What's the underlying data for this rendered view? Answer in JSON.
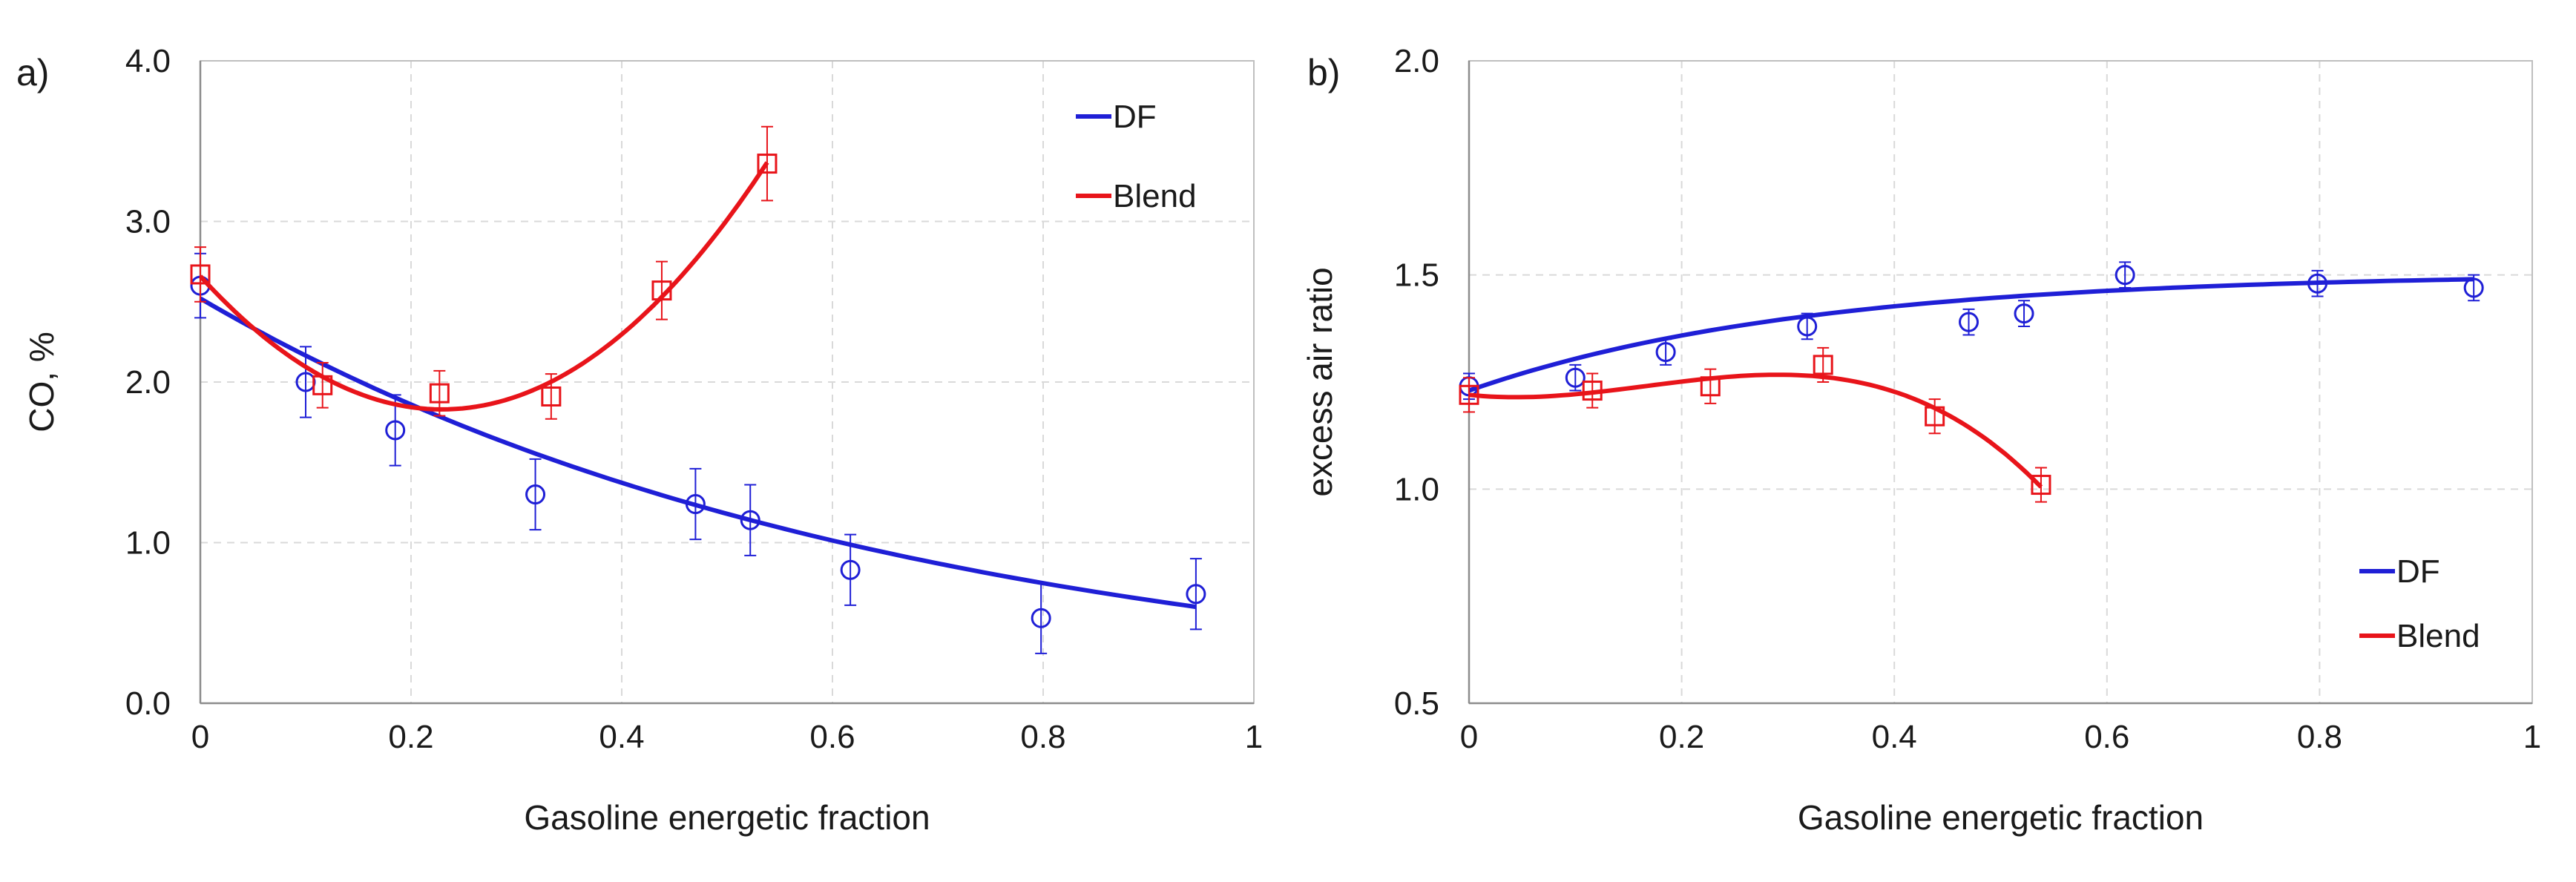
{
  "chart_data": [
    {
      "panel_label": "a)",
      "type": "scatter",
      "xlabel": "Gasoline energetic fraction",
      "ylabel": "CO, %",
      "xlim": [
        0,
        1
      ],
      "ylim": [
        0.0,
        4.0
      ],
      "xticks": [
        0,
        0.2,
        0.4,
        0.6,
        0.8,
        1
      ],
      "xtick_labels": [
        "0",
        "0.2",
        "0.4",
        "0.6",
        "0.8",
        "1"
      ],
      "yticks": [
        0.0,
        1.0,
        2.0,
        3.0,
        4.0
      ],
      "ytick_labels": [
        "0.0",
        "1.0",
        "2.0",
        "3.0",
        "4.0"
      ],
      "grid": true,
      "legend_position": "top-right",
      "series": [
        {
          "name": "DF",
          "color": "#1f1fd6",
          "marker": "circle",
          "x": [
            0.0,
            0.1,
            0.185,
            0.318,
            0.47,
            0.522,
            0.617,
            0.798,
            0.945
          ],
          "y": [
            2.6,
            2.0,
            1.7,
            1.3,
            1.24,
            1.14,
            0.83,
            0.53,
            0.68
          ],
          "err": [
            0.2,
            0.22,
            0.22,
            0.22,
            0.22,
            0.22,
            0.22,
            0.22,
            0.22
          ],
          "fit": {
            "x": [
              0.0,
              0.945
            ],
            "y": [
              2.52,
              0.6
            ],
            "shape": "exponential-decay"
          }
        },
        {
          "name": "Blend",
          "color": "#e8141a",
          "marker": "square",
          "x": [
            0.0,
            0.116,
            0.227,
            0.333,
            0.438,
            0.538
          ],
          "y": [
            2.67,
            1.98,
            1.93,
            1.91,
            2.57,
            3.36
          ],
          "err": [
            0.17,
            0.14,
            0.14,
            0.14,
            0.18,
            0.23
          ],
          "fit": {
            "x": [
              0.0,
              0.538
            ],
            "y": [
              2.66,
              3.38
            ],
            "shape": "polynomial"
          }
        }
      ]
    },
    {
      "panel_label": "b)",
      "type": "scatter",
      "xlabel": "Gasoline energetic fraction",
      "ylabel": "excess air ratio",
      "xlim": [
        0,
        1
      ],
      "ylim": [
        0.5,
        2.0
      ],
      "xticks": [
        0,
        0.2,
        0.4,
        0.6,
        0.8,
        1
      ],
      "xtick_labels": [
        "0",
        "0.2",
        "0.4",
        "0.6",
        "0.8",
        "1"
      ],
      "yticks": [
        0.5,
        1.0,
        1.5,
        2.0
      ],
      "ytick_labels": [
        "0.5",
        "1.0",
        "1.5",
        "2.0"
      ],
      "grid": true,
      "legend_position": "bottom-right",
      "series": [
        {
          "name": "DF",
          "color": "#1f1fd6",
          "marker": "circle",
          "x": [
            0.0,
            0.1,
            0.185,
            0.318,
            0.47,
            0.522,
            0.617,
            0.798,
            0.945
          ],
          "y": [
            1.24,
            1.26,
            1.32,
            1.38,
            1.39,
            1.41,
            1.5,
            1.48,
            1.47
          ],
          "err": [
            0.03,
            0.03,
            0.03,
            0.03,
            0.03,
            0.03,
            0.03,
            0.03,
            0.03
          ],
          "fit": {
            "x": [
              0.0,
              0.945
            ],
            "y": [
              1.23,
              1.49
            ],
            "shape": "saturating"
          }
        },
        {
          "name": "Blend",
          "color": "#e8141a",
          "marker": "square",
          "x": [
            0.0,
            0.116,
            0.227,
            0.333,
            0.438,
            0.538
          ],
          "y": [
            1.22,
            1.23,
            1.24,
            1.29,
            1.17,
            1.01
          ],
          "err": [
            0.04,
            0.04,
            0.04,
            0.04,
            0.04,
            0.04
          ],
          "fit": {
            "x": [
              0.0,
              0.538
            ],
            "y": [
              1.22,
              1.0
            ],
            "shape": "polynomial"
          }
        }
      ]
    }
  ]
}
